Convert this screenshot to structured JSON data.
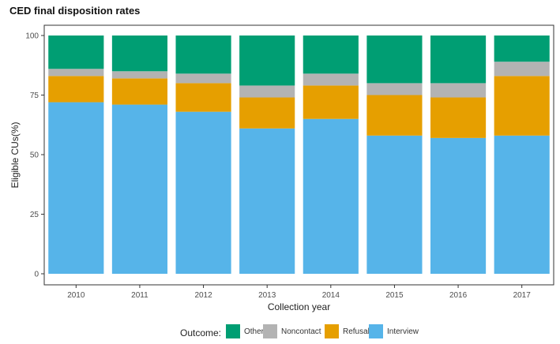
{
  "chart_data": {
    "type": "bar",
    "stacked": true,
    "title": "CED final disposition rates",
    "xlabel": "Collection year",
    "ylabel": "Eligible CUs(%)",
    "categories": [
      "2010",
      "2011",
      "2012",
      "2013",
      "2014",
      "2015",
      "2016",
      "2017"
    ],
    "ylim": [
      0,
      100
    ],
    "yticks": [
      "0",
      "25",
      "50",
      "75",
      "100"
    ],
    "series": [
      {
        "name": "Interview",
        "color": "#56B4E9",
        "values": [
          72,
          71,
          68,
          61,
          65,
          58,
          57,
          58
        ]
      },
      {
        "name": "Refusal",
        "color": "#E69F00",
        "values": [
          11,
          11,
          12,
          13,
          14,
          17,
          17,
          25
        ]
      },
      {
        "name": "Noncontact",
        "color": "#B3B3B3",
        "values": [
          3,
          3,
          4,
          5,
          5,
          5,
          6,
          6
        ]
      },
      {
        "name": "Other",
        "color": "#009E73",
        "values": [
          14,
          15,
          16,
          21,
          16,
          20,
          20,
          11
        ]
      }
    ],
    "legend": {
      "title": "Outcome:",
      "position": "bottom",
      "order": [
        "Other",
        "Noncontact",
        "Refusal",
        "Interview"
      ]
    },
    "grid": false
  }
}
